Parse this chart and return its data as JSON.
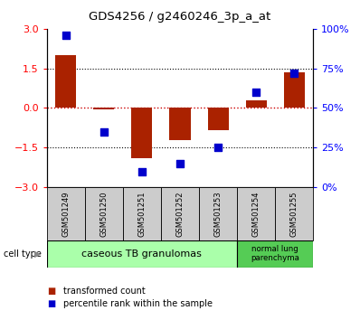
{
  "title": "GDS4256 / g2460246_3p_a_at",
  "samples": [
    "GSM501249",
    "GSM501250",
    "GSM501251",
    "GSM501252",
    "GSM501253",
    "GSM501254",
    "GSM501255"
  ],
  "transformed_count": [
    2.0,
    -0.05,
    -1.9,
    -1.2,
    -0.85,
    0.3,
    1.35
  ],
  "percentile_rank": [
    96,
    35,
    10,
    15,
    25,
    60,
    72
  ],
  "left_ylim": [
    -3,
    3
  ],
  "right_ylim": [
    0,
    100
  ],
  "left_yticks": [
    -3,
    -1.5,
    0,
    1.5,
    3
  ],
  "right_yticks": [
    0,
    25,
    50,
    75,
    100
  ],
  "right_yticklabels": [
    "0%",
    "25%",
    "50%",
    "75%",
    "100%"
  ],
  "bar_color": "#aa2200",
  "dot_color": "#0000cc",
  "zero_line_color": "#cc0000",
  "dotted_line_color": "#000000",
  "group1_label": "caseous TB granulomas",
  "group2_label": "normal lung\nparenchyma",
  "group1_color": "#aaffaa",
  "group2_color": "#55cc55",
  "sample_box_color": "#cccccc",
  "legend_bar_label": "transformed count",
  "legend_dot_label": "percentile rank within the sample",
  "cell_type_label": "cell type",
  "bg_color": "#ffffff"
}
